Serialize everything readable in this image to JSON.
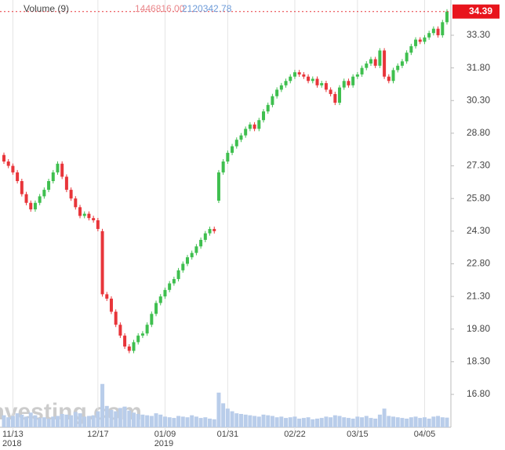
{
  "chart_data": {
    "type": "candlestick",
    "legend": {
      "name": "Volume (9)",
      "last": "1446816.00",
      "average": "2120342.78"
    },
    "watermark": "Investing.com",
    "up_color": "#3fbf4f",
    "down_color": "#e8353a",
    "volume_color": "#b9cdea",
    "categories": [
      null,
      null,
      "11/13\n2018",
      null,
      null,
      null,
      null,
      null,
      null,
      null,
      null,
      null,
      null,
      null,
      null,
      null,
      null,
      null,
      null,
      null,
      null,
      "12/17",
      null,
      null,
      null,
      null,
      null,
      null,
      null,
      null,
      null,
      null,
      null,
      null,
      null,
      null,
      "01/09\n2019",
      null,
      null,
      null,
      null,
      null,
      null,
      null,
      null,
      null,
      null,
      null,
      null,
      null,
      "01/31",
      null,
      null,
      null,
      null,
      null,
      null,
      null,
      null,
      null,
      null,
      null,
      null,
      null,
      null,
      "02/22",
      null,
      null,
      null,
      null,
      null,
      null,
      null,
      null,
      null,
      null,
      null,
      null,
      null,
      "03/15",
      null,
      null,
      null,
      null,
      null,
      null,
      null,
      null,
      null,
      null,
      null,
      null,
      null,
      null,
      "04/05",
      null,
      null,
      null,
      null,
      null
    ],
    "open": [
      27.8,
      27.5,
      27.3,
      27.0,
      26.6,
      26.0,
      25.6,
      25.3,
      25.6,
      25.9,
      26.2,
      26.6,
      27.0,
      27.4,
      26.8,
      26.2,
      25.8,
      25.4,
      25.0,
      25.1,
      24.9,
      24.8,
      24.3,
      21.4,
      21.2,
      20.6,
      20.0,
      19.5,
      19.0,
      18.8,
      19.2,
      19.5,
      19.6,
      20.0,
      20.5,
      21.0,
      21.3,
      21.6,
      21.9,
      22.1,
      22.5,
      22.8,
      23.1,
      23.3,
      23.6,
      23.9,
      24.2,
      24.4,
      25.7,
      27.0,
      27.5,
      27.9,
      28.2,
      28.5,
      28.7,
      29.0,
      29.2,
      29.0,
      29.4,
      29.8,
      30.1,
      30.5,
      30.8,
      31.0,
      31.2,
      31.4,
      31.6,
      31.5,
      31.4,
      31.2,
      31.3,
      31.0,
      31.1,
      30.8,
      30.6,
      30.2,
      30.9,
      31.2,
      31.0,
      31.4,
      31.5,
      31.8,
      32.0,
      32.2,
      31.9,
      32.6,
      31.4,
      31.2,
      31.7,
      31.9,
      32.1,
      32.5,
      32.8,
      33.1,
      33.0,
      33.2,
      33.4,
      33.6,
      33.3,
      33.9
    ],
    "close": [
      27.5,
      27.3,
      27.0,
      26.6,
      26.0,
      25.6,
      25.3,
      25.6,
      25.9,
      26.2,
      26.6,
      27.0,
      27.4,
      26.8,
      26.2,
      25.8,
      25.4,
      25.0,
      25.1,
      24.9,
      24.8,
      24.4,
      21.4,
      21.2,
      20.6,
      20.0,
      19.5,
      19.0,
      18.8,
      19.2,
      19.5,
      19.6,
      20.0,
      20.5,
      21.0,
      21.3,
      21.6,
      21.9,
      22.1,
      22.5,
      22.8,
      23.1,
      23.3,
      23.6,
      23.9,
      24.2,
      24.4,
      24.3,
      27.0,
      27.5,
      27.9,
      28.2,
      28.5,
      28.7,
      29.0,
      29.2,
      29.0,
      29.4,
      29.8,
      30.1,
      30.5,
      30.8,
      31.0,
      31.2,
      31.4,
      31.6,
      31.5,
      31.4,
      31.2,
      31.3,
      31.0,
      31.1,
      30.8,
      30.6,
      30.2,
      30.9,
      31.2,
      31.0,
      31.4,
      31.5,
      31.8,
      32.0,
      32.2,
      31.9,
      32.6,
      31.4,
      31.2,
      31.7,
      31.9,
      32.1,
      32.5,
      32.8,
      33.1,
      33.0,
      33.2,
      33.4,
      33.6,
      33.3,
      33.9,
      34.39
    ],
    "volume": [
      1800000,
      1500000,
      1700000,
      2100000,
      1900000,
      1600000,
      2200000,
      1800000,
      1400000,
      1500000,
      1300000,
      1600000,
      1700000,
      2000000,
      1900000,
      1800000,
      2300000,
      2100000,
      1600000,
      1700000,
      1800000,
      2400000,
      6500000,
      3200000,
      2600000,
      2400000,
      2900000,
      3100000,
      2500000,
      2200000,
      2000000,
      1900000,
      1800000,
      1700000,
      2100000,
      1900000,
      1600000,
      1500000,
      1400000,
      1700000,
      1600000,
      1500000,
      1800000,
      1600000,
      1400000,
      1500000,
      1300000,
      1200000,
      5200000,
      3600000,
      2800000,
      2400000,
      2100000,
      2000000,
      1900000,
      1800000,
      1700000,
      1600000,
      1900000,
      1800000,
      1700000,
      1500000,
      1600000,
      1400000,
      1500000,
      1600000,
      1300000,
      1400000,
      1500000,
      1200000,
      1300000,
      1400000,
      1600000,
      1500000,
      1800000,
      1700000,
      1500000,
      1400000,
      1300000,
      1600000,
      1500000,
      1700000,
      1400000,
      1300000,
      1900000,
      2800000,
      1700000,
      1600000,
      1500000,
      1400000,
      1300000,
      1500000,
      1600000,
      1400000,
      1500000,
      1300000,
      1600000,
      1700000,
      1500000,
      1446816
    ],
    "ylim": [
      15.29,
      34.92
    ],
    "yticks": [
      {
        "value": 16.8,
        "label": "16.80"
      },
      {
        "value": 18.3,
        "label": "18.30"
      },
      {
        "value": 19.8,
        "label": "19.80"
      },
      {
        "value": 21.3,
        "label": "21.30"
      },
      {
        "value": 22.8,
        "label": "22.80"
      },
      {
        "value": 24.3,
        "label": "24.30"
      },
      {
        "value": 25.8,
        "label": "25.80"
      },
      {
        "value": 27.3,
        "label": "27.30"
      },
      {
        "value": 28.8,
        "label": "28.80"
      },
      {
        "value": 30.3,
        "label": "30.30"
      },
      {
        "value": 31.8,
        "label": "31.80"
      },
      {
        "value": 33.3,
        "label": "33.30"
      }
    ],
    "vlim": [
      0,
      10000000
    ],
    "x_grid": true
  }
}
